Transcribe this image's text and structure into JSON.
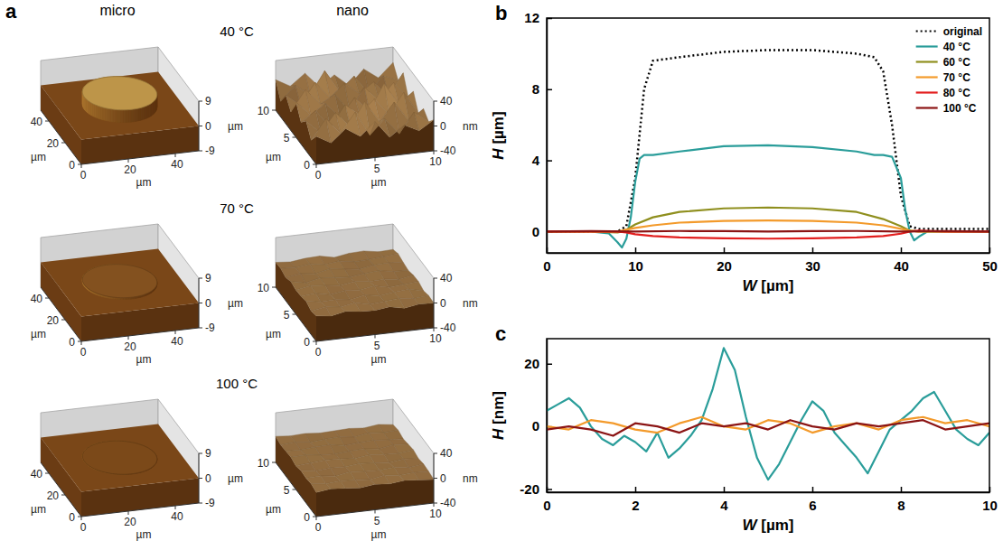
{
  "chart_data": [
    {
      "type": "surface",
      "label": "a",
      "column_titles": [
        "micro",
        "nano"
      ],
      "row_titles": [
        "40 °C",
        "70 °C",
        "100 °C"
      ],
      "panels": [
        [
          {
            "xlim": [
              0,
              50
            ],
            "ylim": [
              0,
              50
            ],
            "zlim": [
              -9,
              9
            ],
            "xticks": [
              0,
              20,
              40
            ],
            "yticks": [
              0,
              20,
              40
            ],
            "zticks": [
              -9,
              0,
              9
            ],
            "x_unit": "µm",
            "y_unit": "µm",
            "z_unit": "µm",
            "base": 0,
            "disk": {
              "x": 25,
              "y": 25,
              "r": 15,
              "h": 4.5
            }
          },
          {
            "xlim": [
              0,
              10
            ],
            "ylim": [
              0,
              10
            ],
            "zlim": [
              -40,
              40
            ],
            "xticks": [
              0,
              5,
              10
            ],
            "yticks": [
              0,
              5,
              10
            ],
            "zticks": [
              -40,
              0,
              40
            ],
            "x_unit": "µm",
            "y_unit": "µm",
            "z_unit": "nm",
            "x": [
              0,
              1.25,
              2.5,
              3.75,
              5,
              6.25,
              7.5,
              8.75,
              10
            ],
            "y": [
              0,
              1.25,
              2.5,
              3.75,
              5,
              6.25,
              7.5,
              8.75,
              10
            ],
            "z": [
              [
                5,
                -8,
                12,
                -3,
                18,
                -10,
                7,
                -5,
                10
              ],
              [
                -12,
                20,
                -6,
                25,
                -15,
                9,
                -18,
                14,
                -4
              ],
              [
                8,
                -14,
                16,
                -9,
                28,
                -7,
                22,
                -11,
                6
              ],
              [
                -5,
                11,
                -19,
                15,
                -4,
                19,
                -9,
                24,
                -13
              ],
              [
                17,
                -7,
                9,
                -16,
                13,
                -12,
                30,
                -6,
                12
              ],
              [
                -10,
                23,
                -3,
                10,
                -20,
                16,
                -8,
                18,
                -9
              ],
              [
                6,
                -13,
                21,
                -6,
                14,
                -5,
                11,
                -15,
                20
              ],
              [
                -15,
                8,
                -10,
                26,
                -9,
                12,
                -17,
                7,
                -3
              ],
              [
                9,
                -4,
                14,
                -11,
                6,
                -14,
                10,
                -7,
                15
              ]
            ]
          }
        ],
        [
          {
            "xlim": [
              0,
              50
            ],
            "ylim": [
              0,
              50
            ],
            "zlim": [
              -9,
              9
            ],
            "xticks": [
              0,
              20,
              40
            ],
            "yticks": [
              0,
              20,
              40
            ],
            "zticks": [
              -9,
              0,
              9
            ],
            "x_unit": "µm",
            "y_unit": "µm",
            "z_unit": "µm",
            "base": 0,
            "disk": {
              "x": 25,
              "y": 25,
              "r": 15,
              "h": 0.6
            }
          },
          {
            "xlim": [
              0,
              10
            ],
            "ylim": [
              0,
              10
            ],
            "zlim": [
              -40,
              40
            ],
            "xticks": [
              0,
              5,
              10
            ],
            "yticks": [
              0,
              5,
              10
            ],
            "zticks": [
              -40,
              0,
              40
            ],
            "x_unit": "µm",
            "y_unit": "µm",
            "z_unit": "nm",
            "x": [
              0,
              1.25,
              2.5,
              3.75,
              5,
              6.25,
              7.5,
              8.75,
              10
            ],
            "y": [
              0,
              1.25,
              2.5,
              3.75,
              5,
              6.25,
              7.5,
              8.75,
              10
            ],
            "z": [
              [
                1,
                -2,
                3,
                0,
                -1,
                2,
                -3,
                1,
                0
              ],
              [
                -2,
                2,
                -1,
                3,
                -2,
                0,
                2,
                -1,
                1
              ],
              [
                3,
                -1,
                0,
                -3,
                2,
                -2,
                1,
                3,
                -2
              ],
              [
                0,
                2,
                -3,
                1,
                -1,
                3,
                -2,
                0,
                2
              ],
              [
                -1,
                3,
                1,
                -2,
                2,
                -1,
                0,
                -3,
                1
              ],
              [
                2,
                -3,
                2,
                0,
                -2,
                1,
                3,
                -1,
                -2
              ],
              [
                -3,
                1,
                -2,
                3,
                0,
                -3,
                1,
                2,
                0
              ],
              [
                1,
                0,
                3,
                -1,
                2,
                -2,
                -1,
                1,
                3
              ],
              [
                0,
                -2,
                1,
                2,
                -3,
                1,
                2,
                -2,
                -1
              ]
            ]
          }
        ],
        [
          {
            "xlim": [
              0,
              50
            ],
            "ylim": [
              0,
              50
            ],
            "zlim": [
              -9,
              9
            ],
            "xticks": [
              0,
              20,
              40
            ],
            "yticks": [
              0,
              20,
              40
            ],
            "zticks": [
              -9,
              0,
              9
            ],
            "x_unit": "µm",
            "y_unit": "µm",
            "z_unit": "µm",
            "base": 0,
            "disk": {
              "x": 25,
              "y": 25,
              "r": 15,
              "h": 0.1
            }
          },
          {
            "xlim": [
              0,
              10
            ],
            "ylim": [
              0,
              10
            ],
            "zlim": [
              -40,
              40
            ],
            "xticks": [
              0,
              5,
              10
            ],
            "yticks": [
              0,
              5,
              10
            ],
            "zticks": [
              -40,
              0,
              40
            ],
            "x_unit": "µm",
            "y_unit": "µm",
            "z_unit": "nm",
            "x": [
              0,
              1.25,
              2.5,
              3.75,
              5,
              6.25,
              7.5,
              8.75,
              10
            ],
            "y": [
              0,
              1.25,
              2.5,
              3.75,
              5,
              6.25,
              7.5,
              8.75,
              10
            ],
            "z": [
              [
                -1,
                2,
                0,
                -2,
                1,
                -1,
                2,
                0,
                -2
              ],
              [
                2,
                -1,
                1,
                0,
                -2,
                2,
                -1,
                1,
                0
              ],
              [
                0,
                1,
                -2,
                2,
                0,
                -1,
                1,
                -2,
                1
              ],
              [
                1,
                -2,
                0,
                -1,
                2,
                0,
                -2,
                1,
                -1
              ],
              [
                -2,
                0,
                2,
                1,
                -1,
                2,
                0,
                -1,
                2
              ],
              [
                1,
                2,
                -1,
                -2,
                0,
                1,
                -2,
                2,
                0
              ],
              [
                0,
                -1,
                1,
                2,
                -2,
                0,
                1,
                -1,
                -2
              ],
              [
                -1,
                1,
                -2,
                0,
                1,
                -2,
                2,
                0,
                1
              ],
              [
                2,
                0,
                1,
                -1,
                0,
                1,
                -1,
                2,
                -1
              ]
            ]
          }
        ]
      ]
    },
    {
      "type": "line",
      "label": "b",
      "xlabel": "W [µm]",
      "ylabel": "H [µm]",
      "xlim": [
        0,
        50
      ],
      "ylim": [
        -1.2,
        12
      ],
      "xticks": [
        0,
        10,
        20,
        30,
        40,
        50
      ],
      "yticks": [
        0,
        4,
        8,
        12
      ],
      "legend": "upper right",
      "series": [
        {
          "name": "original",
          "color": "#000000",
          "line_style": "dotted",
          "x": [
            0,
            5,
            8,
            9,
            10,
            11,
            12,
            15,
            20,
            25,
            30,
            35,
            37,
            38,
            39,
            40,
            41,
            42,
            45,
            50
          ],
          "values": [
            0,
            0,
            0,
            0.3,
            3,
            8,
            9.6,
            9.8,
            10.1,
            10.2,
            10.2,
            10,
            9.8,
            9,
            6,
            2,
            0.3,
            0.15,
            0.15,
            0.15
          ]
        },
        {
          "name": "40 °C",
          "color": "#2a9d9a",
          "line_style": "solid",
          "x": [
            0,
            5,
            7,
            8,
            8.5,
            9,
            9.5,
            10,
            10.5,
            11,
            12,
            15,
            20,
            25,
            30,
            35,
            37,
            38,
            39,
            40,
            40.5,
            41,
            41.5,
            42,
            43,
            45,
            50
          ],
          "values": [
            0,
            0,
            -0.1,
            -0.6,
            -0.9,
            -0.4,
            0.8,
            2.8,
            4.1,
            4.3,
            4.3,
            4.5,
            4.8,
            4.85,
            4.75,
            4.5,
            4.3,
            4.3,
            4.2,
            3,
            1.2,
            0,
            -0.5,
            -0.3,
            0,
            0,
            0
          ]
        },
        {
          "name": "60 °C",
          "color": "#8f8f1e",
          "line_style": "solid",
          "x": [
            0,
            5,
            8,
            8.5,
            9,
            10,
            12,
            15,
            20,
            25,
            30,
            35,
            38,
            40,
            41,
            42,
            45,
            50
          ],
          "values": [
            0,
            0,
            -0.05,
            0,
            0.1,
            0.4,
            0.8,
            1.1,
            1.3,
            1.35,
            1.3,
            1.1,
            0.7,
            0.3,
            0.05,
            0,
            0,
            0
          ]
        },
        {
          "name": "70 °C",
          "color": "#f39a2b",
          "line_style": "solid",
          "x": [
            0,
            5,
            8,
            9,
            10,
            12,
            15,
            20,
            25,
            30,
            35,
            38,
            40,
            41,
            42,
            45,
            50
          ],
          "values": [
            0,
            0,
            0,
            0.1,
            0.2,
            0.35,
            0.5,
            0.6,
            0.62,
            0.6,
            0.5,
            0.35,
            0.15,
            0.05,
            0,
            0,
            0
          ]
        },
        {
          "name": "80 °C",
          "color": "#e31e1e",
          "line_style": "solid",
          "x": [
            0,
            5,
            8,
            9,
            10,
            12,
            15,
            20,
            25,
            30,
            35,
            38,
            40,
            41,
            42,
            45,
            50
          ],
          "values": [
            0,
            0,
            0,
            -0.05,
            -0.15,
            -0.25,
            -0.33,
            -0.38,
            -0.4,
            -0.38,
            -0.33,
            -0.25,
            -0.12,
            0,
            0.05,
            0,
            0
          ]
        },
        {
          "name": "100 °C",
          "color": "#8b1414",
          "line_style": "solid",
          "x": [
            0,
            5,
            10,
            15,
            20,
            25,
            30,
            35,
            40,
            45,
            50
          ],
          "values": [
            0,
            0.02,
            0,
            0.03,
            0.02,
            0,
            0.02,
            0.03,
            0,
            0.02,
            0
          ]
        }
      ]
    },
    {
      "type": "line",
      "label": "c",
      "xlabel": "W [µm]",
      "ylabel": "H [nm]",
      "xlim": [
        0,
        10
      ],
      "ylim": [
        -21,
        28
      ],
      "xticks": [
        0,
        2,
        4,
        6,
        8,
        10
      ],
      "yticks": [
        -20,
        0,
        20
      ],
      "series": [
        {
          "color": "#2a9d9a",
          "line_style": "solid",
          "x": [
            0,
            0.25,
            0.5,
            0.75,
            1,
            1.25,
            1.5,
            1.75,
            2,
            2.25,
            2.5,
            2.75,
            3,
            3.25,
            3.5,
            3.75,
            4,
            4.25,
            4.5,
            4.75,
            5,
            5.25,
            5.5,
            5.75,
            6,
            6.25,
            6.5,
            6.75,
            7,
            7.25,
            7.5,
            7.75,
            8,
            8.25,
            8.5,
            8.75,
            9,
            9.25,
            9.5,
            9.75,
            10
          ],
          "values": [
            5,
            7,
            9,
            6,
            0,
            -4,
            -6,
            -3,
            -5,
            -8,
            -2,
            -10,
            -7,
            -3,
            2,
            12,
            25,
            18,
            3,
            -10,
            -17,
            -12,
            -5,
            2,
            8,
            5,
            -2,
            -6,
            -10,
            -15,
            -8,
            -1,
            2,
            5,
            9,
            11,
            5,
            -1,
            -4,
            -6,
            -2
          ]
        },
        {
          "color": "#f39a2b",
          "line_style": "solid",
          "x": [
            0,
            0.5,
            1,
            1.5,
            2,
            2.5,
            3,
            3.5,
            4,
            4.5,
            5,
            5.5,
            6,
            6.5,
            7,
            7.5,
            8,
            8.5,
            9,
            9.5,
            10
          ],
          "values": [
            0,
            -1,
            2,
            1,
            -1,
            -2,
            1,
            3,
            0,
            -1,
            2,
            1,
            -2,
            0,
            1,
            -1,
            2,
            3,
            1,
            2,
            0
          ]
        },
        {
          "color": "#8b1414",
          "line_style": "solid",
          "x": [
            0,
            0.5,
            1,
            1.5,
            2,
            2.5,
            3,
            3.5,
            4,
            4.5,
            5,
            5.5,
            6,
            6.5,
            7,
            7.5,
            8,
            8.5,
            9,
            9.5,
            10
          ],
          "values": [
            -1,
            0,
            -1,
            -3,
            1,
            0,
            -2,
            1,
            0,
            1,
            -1,
            2,
            0,
            -1,
            1,
            0,
            1,
            2,
            -1,
            0,
            1
          ]
        }
      ]
    }
  ]
}
